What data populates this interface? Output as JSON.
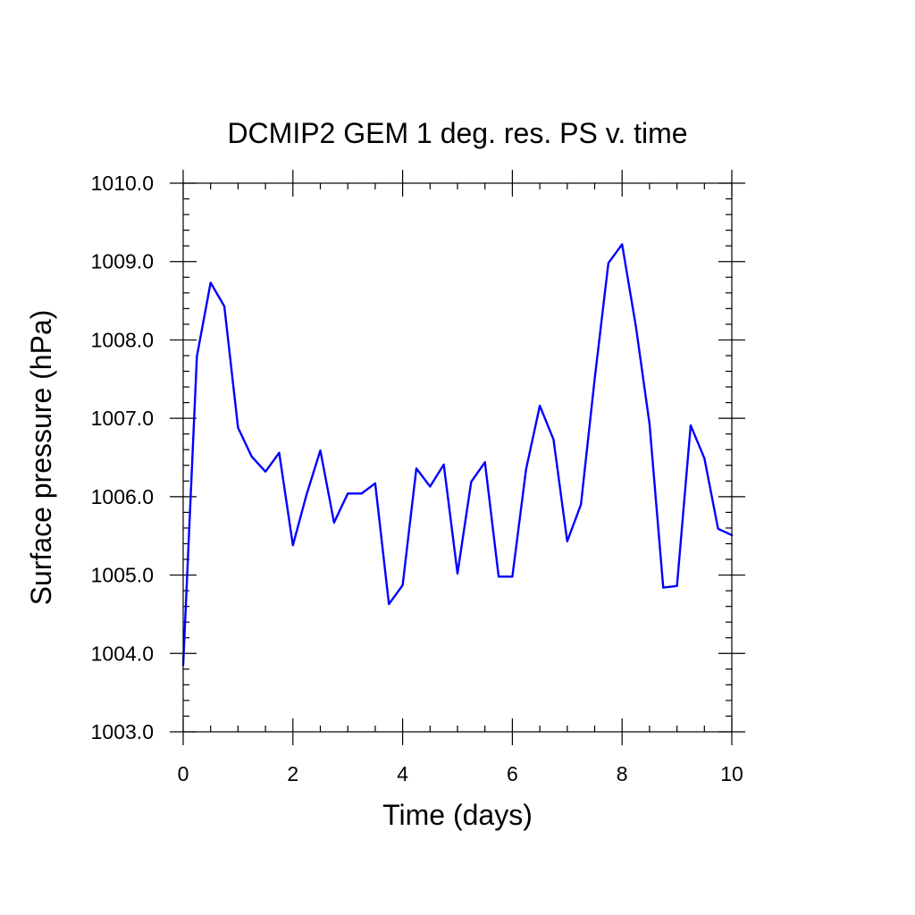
{
  "chart_data": {
    "type": "line",
    "title": "DCMIP2 GEM 1 deg. res. PS v. time",
    "xlabel": "Time (days)",
    "ylabel": "Surface pressure (hPa)",
    "xlim": [
      0,
      10
    ],
    "ylim": [
      1003.0,
      1010.0
    ],
    "x_ticks": [
      "0",
      "2",
      "4",
      "6",
      "8",
      "10"
    ],
    "y_ticks": [
      "1003.0",
      "1004.0",
      "1005.0",
      "1006.0",
      "1007.0",
      "1008.0",
      "1009.0",
      "1010.0"
    ],
    "grid": false,
    "series": [
      {
        "color": "#0000ff",
        "x": [
          0,
          0.25,
          0.5,
          0.75,
          1.0,
          1.25,
          1.5,
          1.75,
          2.0,
          2.25,
          2.5,
          2.75,
          3.0,
          3.25,
          3.5,
          3.75,
          4.0,
          4.25,
          4.5,
          4.75,
          5.0,
          5.25,
          5.5,
          5.75,
          6.0,
          6.25,
          6.5,
          6.75,
          7.0,
          7.25,
          7.5,
          7.75,
          8.0,
          8.25,
          8.5,
          8.75,
          9.0,
          9.25,
          9.5,
          9.75,
          10.0
        ],
        "y": [
          1003.85,
          1007.79,
          1008.73,
          1008.43,
          1006.88,
          1006.51,
          1006.32,
          1006.56,
          1005.38,
          1006.03,
          1006.59,
          1005.67,
          1006.04,
          1006.04,
          1006.17,
          1004.63,
          1004.87,
          1006.36,
          1006.13,
          1006.41,
          1005.02,
          1006.19,
          1006.44,
          1004.98,
          1004.98,
          1006.35,
          1007.16,
          1006.73,
          1005.43,
          1005.9,
          1007.5,
          1008.98,
          1009.22,
          1008.18,
          1006.93,
          1004.84,
          1004.86,
          1006.91,
          1006.49,
          1005.59,
          1005.51
        ]
      }
    ]
  }
}
